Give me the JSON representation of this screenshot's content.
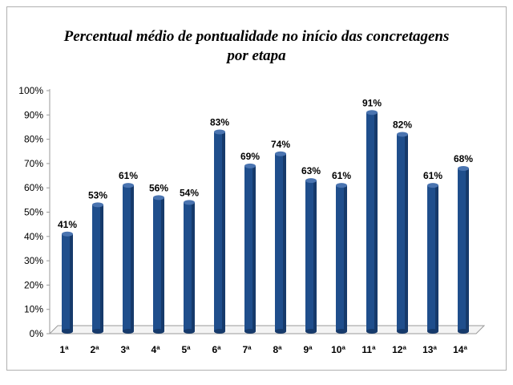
{
  "chart_data": {
    "type": "bar",
    "title_lines": [
      "Percentual médio de pontualidade no início das concretagens",
      "por etapa"
    ],
    "categories": [
      "1ª",
      "2ª",
      "3ª",
      "4ª",
      "5ª",
      "6ª",
      "7ª",
      "8ª",
      "9ª",
      "10ª",
      "11ª",
      "12ª",
      "13ª",
      "14ª"
    ],
    "values": [
      41,
      53,
      61,
      56,
      54,
      83,
      69,
      74,
      63,
      61,
      91,
      82,
      61,
      68
    ],
    "data_labels": [
      "41%",
      "53%",
      "61%",
      "56%",
      "54%",
      "83%",
      "69%",
      "74%",
      "63%",
      "61%",
      "91%",
      "82%",
      "61%",
      "68%"
    ],
    "y_ticks": [
      "0%",
      "10%",
      "20%",
      "30%",
      "40%",
      "50%",
      "60%",
      "70%",
      "80%",
      "90%",
      "100%"
    ],
    "ylim": [
      0,
      100
    ],
    "bar_color": "#1f4e8c",
    "bar_shade": "#163a6b",
    "grid": false,
    "legend": false
  }
}
